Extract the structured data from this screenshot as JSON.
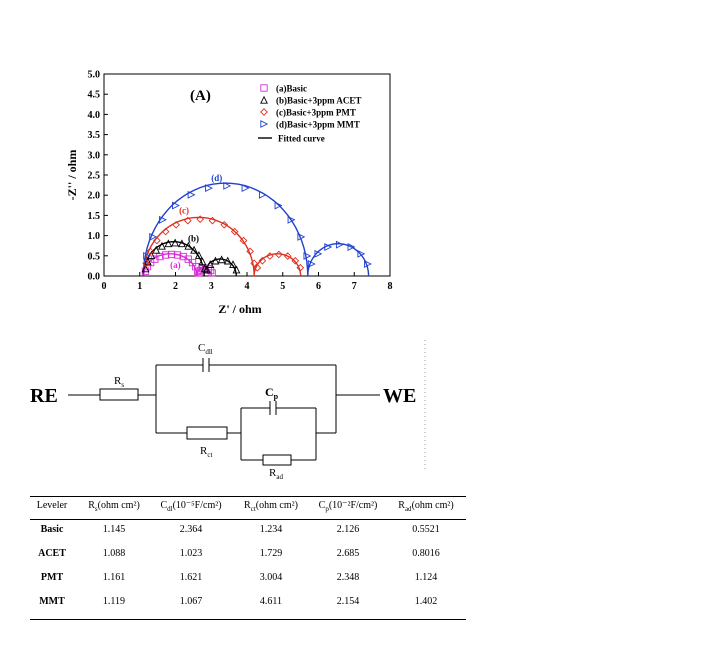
{
  "chart_data": {
    "type": "scatter",
    "panel_label": "(A)",
    "xlabel": "Z' / ohm",
    "ylabel": "-Z'' / ohm",
    "xlim": [
      0,
      8
    ],
    "ylim": [
      0,
      5
    ],
    "x_ticks": [
      "0",
      "1",
      "2",
      "3",
      "4",
      "5",
      "6",
      "7",
      "8"
    ],
    "y_ticks": [
      "0.0",
      "0.5",
      "1.0",
      "1.5",
      "2.0",
      "2.5",
      "3.0",
      "3.5",
      "4.0",
      "4.5",
      "5.0"
    ],
    "legend_position": "top-right",
    "series": [
      {
        "name": "(a)Basic",
        "label": "(a)",
        "marker": "square",
        "color": "#d82cd8",
        "arcs": [
          [
            1.1,
            0.55
          ],
          [
            2.6,
            0.2
          ]
        ]
      },
      {
        "name": "(b)Basic+3ppm ACET",
        "label": "(b)",
        "marker": "triangle-up",
        "color": "#000000",
        "arcs": [
          [
            1.1,
            0.85
          ],
          [
            2.8,
            0.42
          ]
        ]
      },
      {
        "name": "(c)Basic+3ppm PMT",
        "label": "(c)",
        "marker": "diamond",
        "color": "#e03020",
        "arcs": [
          [
            1.1,
            1.45
          ],
          [
            4.2,
            0.55
          ]
        ]
      },
      {
        "name": "(d)Basic+3ppm MMT",
        "label": "(d)",
        "marker": "triangle-right",
        "color": "#2040d0",
        "arcs": [
          [
            1.1,
            2.3
          ],
          [
            5.7,
            0.8
          ]
        ]
      }
    ],
    "fit_legend": "Fitted curve",
    "fit_color_note": "",
    "arc_spans": {
      "a": [
        [
          1.1,
          2.6
        ],
        [
          2.6,
          3.0
        ]
      ],
      "b": [
        [
          1.1,
          2.8
        ],
        [
          2.8,
          3.7
        ]
      ],
      "c": [
        [
          1.1,
          4.2
        ],
        [
          4.2,
          5.5
        ]
      ],
      "d": [
        [
          1.1,
          5.7
        ],
        [
          5.7,
          7.4
        ]
      ]
    }
  },
  "circuit": {
    "left_terminal": "RE",
    "right_terminal": "WE",
    "rs": "R",
    "rs_sub": "s",
    "cdl": "C",
    "cdl_sub": "dll",
    "cp": "C",
    "cp_sub": "p",
    "rct": "R",
    "rct_sub": "ct",
    "rad": "R",
    "rad_sub": "ad"
  },
  "table": {
    "headers": [
      {
        "main": "Leveler",
        "sub": "",
        "rest": ""
      },
      {
        "main": "R",
        "sub": "s",
        "rest": "(ohm cm²)"
      },
      {
        "main": "C",
        "sub": "dl",
        "rest": "(10⁻⁵F/cm²)"
      },
      {
        "main": "R",
        "sub": "ct",
        "rest": "(ohm cm²)"
      },
      {
        "main": "C",
        "sub": "p",
        "rest": "(10⁻²F/cm²)"
      },
      {
        "main": "R",
        "sub": "ad",
        "rest": "(ohm cm²)"
      }
    ],
    "rows": [
      [
        "Basic",
        "1.145",
        "2.364",
        "1.234",
        "2.126",
        "0.5521"
      ],
      [
        "ACET",
        "1.088",
        "1.023",
        "1.729",
        "2.685",
        "0.8016"
      ],
      [
        "PMT",
        "1.161",
        "1.621",
        "3.004",
        "2.348",
        "1.124"
      ],
      [
        "MMT",
        "1.119",
        "1.067",
        "4.611",
        "2.154",
        "1.402"
      ]
    ]
  }
}
